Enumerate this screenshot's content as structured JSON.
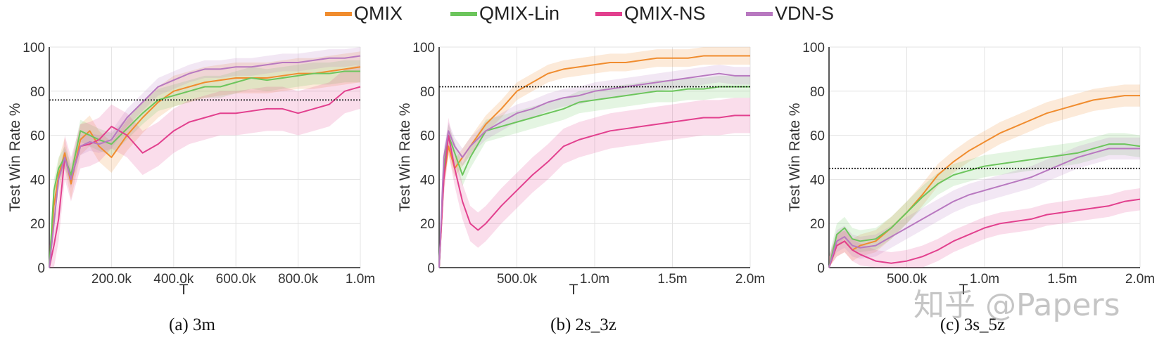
{
  "legend": {
    "items": [
      {
        "label": "QMIX",
        "color": "#f08c2e"
      },
      {
        "label": "QMIX-Lin",
        "color": "#6cc55c"
      },
      {
        "label": "QMIX-NS",
        "color": "#e2408e"
      },
      {
        "label": "VDN-S",
        "color": "#b878c0"
      }
    ]
  },
  "watermark": "知乎 @Papers",
  "chart_data": [
    {
      "type": "line",
      "caption": "(a)  3m",
      "xlabel": "T",
      "ylabel": "Test Win Rate %",
      "xlim": [
        0,
        1000000
      ],
      "ylim": [
        0,
        100
      ],
      "xticks": [
        200000,
        400000,
        600000,
        800000,
        1000000
      ],
      "xticklabels": [
        "200.0k",
        "400.0k",
        "600.0k",
        "800.0k",
        "1.0m"
      ],
      "yticks": [
        0,
        20,
        40,
        60,
        80,
        100
      ],
      "grid": true,
      "reference_line": 76,
      "series": [
        {
          "name": "QMIX",
          "color": "#f08c2e",
          "x": [
            0,
            15000,
            30000,
            50000,
            70000,
            100000,
            130000,
            160000,
            200000,
            250000,
            300000,
            350000,
            400000,
            450000,
            500000,
            550000,
            600000,
            650000,
            700000,
            750000,
            800000,
            850000,
            900000,
            950000,
            1000000
          ],
          "y": [
            0,
            28,
            42,
            52,
            38,
            58,
            62,
            55,
            50,
            60,
            68,
            75,
            80,
            82,
            84,
            85,
            86,
            86,
            86,
            87,
            88,
            88,
            89,
            90,
            91
          ],
          "band": 7
        },
        {
          "name": "QMIX-Lin",
          "color": "#6cc55c",
          "x": [
            0,
            15000,
            30000,
            50000,
            70000,
            100000,
            130000,
            160000,
            200000,
            250000,
            300000,
            350000,
            400000,
            450000,
            500000,
            550000,
            600000,
            650000,
            700000,
            750000,
            800000,
            850000,
            900000,
            950000,
            1000000
          ],
          "y": [
            0,
            35,
            45,
            50,
            42,
            62,
            60,
            58,
            56,
            63,
            70,
            76,
            78,
            80,
            82,
            82,
            84,
            86,
            85,
            86,
            87,
            88,
            88,
            89,
            89
          ],
          "band": 5
        },
        {
          "name": "QMIX-NS",
          "color": "#e2408e",
          "x": [
            0,
            15000,
            30000,
            50000,
            70000,
            100000,
            130000,
            160000,
            200000,
            250000,
            300000,
            350000,
            400000,
            450000,
            500000,
            550000,
            600000,
            650000,
            700000,
            750000,
            800000,
            850000,
            900000,
            950000,
            1000000
          ],
          "y": [
            0,
            10,
            22,
            50,
            40,
            55,
            56,
            58,
            64,
            60,
            52,
            56,
            62,
            66,
            68,
            70,
            70,
            71,
            72,
            72,
            70,
            72,
            74,
            80,
            82
          ],
          "band": 10
        },
        {
          "name": "VDN-S",
          "color": "#b878c0",
          "x": [
            0,
            15000,
            30000,
            50000,
            70000,
            100000,
            130000,
            160000,
            200000,
            250000,
            300000,
            350000,
            400000,
            450000,
            500000,
            550000,
            600000,
            650000,
            700000,
            750000,
            800000,
            850000,
            900000,
            950000,
            1000000
          ],
          "y": [
            0,
            20,
            40,
            50,
            40,
            55,
            57,
            56,
            58,
            68,
            75,
            82,
            85,
            88,
            90,
            90,
            91,
            91,
            92,
            93,
            93,
            94,
            95,
            95,
            96
          ],
          "band": 4
        }
      ]
    },
    {
      "type": "line",
      "caption": "(b)  2s_3z",
      "xlabel": "T",
      "ylabel": "Test Win Rate %",
      "xlim": [
        0,
        2000000
      ],
      "ylim": [
        0,
        100
      ],
      "xticks": [
        500000,
        1000000,
        1500000,
        2000000
      ],
      "xticklabels": [
        "500.0k",
        "1.0m",
        "1.5m",
        "2.0m"
      ],
      "yticks": [
        0,
        20,
        40,
        60,
        80,
        100
      ],
      "grid": true,
      "reference_line": 82,
      "series": [
        {
          "name": "QMIX",
          "color": "#f08c2e",
          "x": [
            0,
            30000,
            60000,
            100000,
            150000,
            200000,
            300000,
            400000,
            500000,
            600000,
            700000,
            800000,
            900000,
            1000000,
            1100000,
            1200000,
            1300000,
            1400000,
            1500000,
            1600000,
            1700000,
            1800000,
            1900000,
            2000000
          ],
          "y": [
            0,
            40,
            55,
            45,
            50,
            55,
            65,
            72,
            80,
            84,
            88,
            90,
            91,
            92,
            93,
            93,
            94,
            95,
            95,
            95,
            96,
            96,
            96,
            96
          ],
          "band": 4
        },
        {
          "name": "QMIX-Lin",
          "color": "#6cc55c",
          "x": [
            0,
            30000,
            60000,
            100000,
            150000,
            200000,
            300000,
            400000,
            500000,
            600000,
            700000,
            800000,
            900000,
            1000000,
            1100000,
            1200000,
            1300000,
            1400000,
            1500000,
            1600000,
            1700000,
            1800000,
            1900000,
            2000000
          ],
          "y": [
            0,
            45,
            60,
            52,
            42,
            50,
            62,
            64,
            66,
            68,
            70,
            72,
            75,
            76,
            77,
            78,
            79,
            80,
            80,
            81,
            81,
            82,
            82,
            82
          ],
          "band": 5
        },
        {
          "name": "QMIX-NS",
          "color": "#e2408e",
          "x": [
            0,
            30000,
            60000,
            100000,
            150000,
            200000,
            250000,
            300000,
            400000,
            500000,
            600000,
            700000,
            800000,
            900000,
            1000000,
            1100000,
            1200000,
            1300000,
            1400000,
            1500000,
            1600000,
            1700000,
            1800000,
            1900000,
            2000000
          ],
          "y": [
            0,
            40,
            60,
            45,
            30,
            20,
            17,
            20,
            28,
            35,
            42,
            48,
            55,
            58,
            60,
            62,
            63,
            64,
            65,
            66,
            67,
            68,
            68,
            69,
            69
          ],
          "band": 8
        },
        {
          "name": "VDN-S",
          "color": "#b878c0",
          "x": [
            0,
            30000,
            60000,
            100000,
            150000,
            200000,
            300000,
            400000,
            500000,
            600000,
            700000,
            800000,
            900000,
            1000000,
            1100000,
            1200000,
            1300000,
            1400000,
            1500000,
            1600000,
            1700000,
            1800000,
            1900000,
            2000000
          ],
          "y": [
            0,
            50,
            62,
            55,
            50,
            55,
            62,
            66,
            70,
            72,
            75,
            77,
            78,
            80,
            81,
            82,
            83,
            84,
            85,
            86,
            87,
            88,
            87,
            87
          ],
          "band": 4
        }
      ]
    },
    {
      "type": "line",
      "caption": "(c)  3s_5z",
      "xlabel": "T",
      "ylabel": "Test Win Rate %",
      "xlim": [
        0,
        2000000
      ],
      "ylim": [
        0,
        100
      ],
      "xticks": [
        500000,
        1000000,
        1500000,
        2000000
      ],
      "xticklabels": [
        "500.0k",
        "1.0m",
        "1.5m",
        "2.0m"
      ],
      "yticks": [
        0,
        20,
        40,
        60,
        80,
        100
      ],
      "grid": true,
      "reference_line": 45,
      "series": [
        {
          "name": "QMIX",
          "color": "#f08c2e",
          "x": [
            0,
            50000,
            100000,
            150000,
            200000,
            300000,
            400000,
            500000,
            600000,
            700000,
            800000,
            900000,
            1000000,
            1100000,
            1200000,
            1300000,
            1400000,
            1500000,
            1600000,
            1700000,
            1800000,
            1900000,
            2000000
          ],
          "y": [
            0,
            10,
            12,
            8,
            10,
            12,
            18,
            25,
            33,
            42,
            48,
            53,
            57,
            61,
            64,
            67,
            70,
            72,
            74,
            76,
            77,
            78,
            78
          ],
          "band": 5
        },
        {
          "name": "QMIX-Lin",
          "color": "#6cc55c",
          "x": [
            0,
            50000,
            100000,
            150000,
            200000,
            300000,
            400000,
            500000,
            600000,
            700000,
            800000,
            900000,
            1000000,
            1100000,
            1200000,
            1300000,
            1400000,
            1500000,
            1600000,
            1700000,
            1800000,
            1900000,
            2000000
          ],
          "y": [
            0,
            15,
            18,
            13,
            12,
            13,
            18,
            25,
            32,
            38,
            42,
            44,
            46,
            47,
            48,
            49,
            50,
            51,
            52,
            54,
            56,
            56,
            55
          ],
          "band": 5
        },
        {
          "name": "QMIX-NS",
          "color": "#e2408e",
          "x": [
            0,
            50000,
            100000,
            150000,
            200000,
            300000,
            400000,
            500000,
            600000,
            700000,
            800000,
            900000,
            1000000,
            1100000,
            1200000,
            1300000,
            1400000,
            1500000,
            1600000,
            1700000,
            1800000,
            1900000,
            2000000
          ],
          "y": [
            0,
            10,
            12,
            8,
            6,
            3,
            2,
            3,
            5,
            8,
            12,
            15,
            18,
            20,
            21,
            22,
            24,
            25,
            26,
            27,
            28,
            30,
            31
          ],
          "band": 5
        },
        {
          "name": "VDN-S",
          "color": "#b878c0",
          "x": [
            0,
            50000,
            100000,
            150000,
            200000,
            300000,
            400000,
            500000,
            600000,
            700000,
            800000,
            900000,
            1000000,
            1100000,
            1200000,
            1300000,
            1400000,
            1500000,
            1600000,
            1700000,
            1800000,
            1900000,
            2000000
          ],
          "y": [
            0,
            12,
            14,
            10,
            9,
            10,
            14,
            18,
            22,
            26,
            30,
            33,
            35,
            37,
            39,
            41,
            44,
            47,
            50,
            52,
            54,
            54,
            54
          ],
          "band": 5
        }
      ]
    }
  ]
}
